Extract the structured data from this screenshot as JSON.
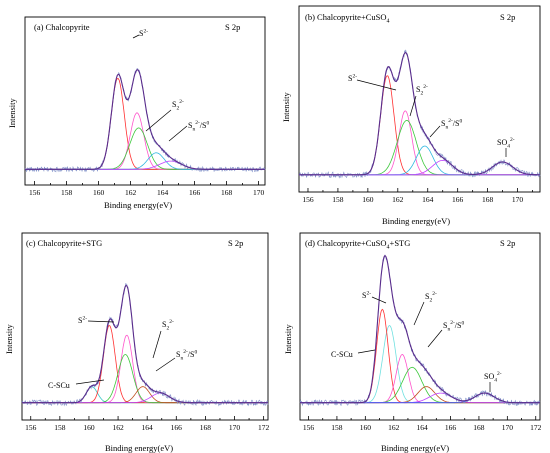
{
  "chart_data": [
    {
      "type": "line",
      "title": "(a) Chalcopyrite",
      "corner_label": "S 2p",
      "xlabel": "Binding energy(eV)",
      "ylabel": "Intensity",
      "xlim": [
        155.4,
        170.4
      ],
      "xticks": [
        156,
        158,
        160,
        162,
        164,
        166,
        168,
        170
      ],
      "ylim": [
        0,
        1.0
      ],
      "baseline": 0.07,
      "components": [
        {
          "name": "S2-",
          "center": 161.2,
          "fwhm": 0.95,
          "height": 0.66,
          "color": "#ff3030"
        },
        {
          "name": "S2 2- a",
          "center": 162.4,
          "fwhm": 1.0,
          "height": 0.41,
          "color": "#ff55cc"
        },
        {
          "name": "S2 2- b",
          "center": 162.5,
          "fwhm": 1.3,
          "height": 0.3,
          "color": "#3cc83c"
        },
        {
          "name": "Sn2-/S0",
          "center": 163.6,
          "fwhm": 1.2,
          "height": 0.12,
          "color": "#30b8e0"
        },
        {
          "name": "Sn2-/S0 b",
          "center": 164.5,
          "fwhm": 1.6,
          "height": 0.06,
          "color": "#c040ff"
        }
      ],
      "annotations": [
        {
          "text": "S2-",
          "x": 162.2,
          "y": 0.91
        },
        {
          "text": "S2 2-",
          "x": 164.0,
          "y": 0.44
        },
        {
          "text": "Sn2-/S0",
          "x": 164.6,
          "y": 0.29
        }
      ]
    },
    {
      "type": "line",
      "title": "(b) Chalcopyrite+CuSO4",
      "corner_label": "S 2p",
      "xlabel": "Binding energy(eV)",
      "ylabel": "Intensity",
      "xlim": [
        155.4,
        171.5
      ],
      "xticks": [
        156,
        158,
        160,
        162,
        164,
        166,
        168,
        170
      ],
      "ylim": [
        0,
        1.0
      ],
      "baseline": 0.07,
      "components": [
        {
          "name": "S2-",
          "center": 161.3,
          "fwhm": 1.05,
          "height": 0.62,
          "color": "#ff3030"
        },
        {
          "name": "S2 2- a",
          "center": 162.5,
          "fwhm": 1.0,
          "height": 0.4,
          "color": "#ff55cc"
        },
        {
          "name": "S2 2- b",
          "center": 162.6,
          "fwhm": 1.5,
          "height": 0.34,
          "color": "#3cc83c"
        },
        {
          "name": "Sn2-/S0",
          "center": 163.8,
          "fwhm": 1.3,
          "height": 0.18,
          "color": "#30b8e0"
        },
        {
          "name": "Sn2-/S0 b",
          "center": 165.0,
          "fwhm": 1.6,
          "height": 0.09,
          "color": "#c040ff"
        },
        {
          "name": "SO4 2-",
          "center": 169.0,
          "fwhm": 1.6,
          "height": 0.08,
          "color": "#a060ff"
        }
      ],
      "annotations": [
        {
          "text": "S2-",
          "x": 159.0,
          "y": 0.72
        },
        {
          "text": "S2 2-",
          "x": 162.8,
          "y": 0.62
        },
        {
          "text": "Sn2-/S0",
          "x": 165.2,
          "y": 0.45
        },
        {
          "text": "SO4 2-",
          "x": 168.9,
          "y": 0.28
        }
      ]
    },
    {
      "type": "line",
      "title": "(c) Chalcopyrite+STG",
      "corner_label": "S 2p",
      "xlabel": "Binding energy(eV)",
      "ylabel": "Intensity",
      "xlim": [
        155.4,
        172.3
      ],
      "xticks": [
        156,
        158,
        160,
        162,
        164,
        166,
        168,
        170,
        172
      ],
      "ylim": [
        0,
        1.0
      ],
      "baseline": 0.07,
      "components": [
        {
          "name": "C-SCu",
          "center": 160.2,
          "fwhm": 0.9,
          "height": 0.1,
          "color": "#3cc8c8"
        },
        {
          "name": "S2-",
          "center": 161.4,
          "fwhm": 0.95,
          "height": 0.48,
          "color": "#ff3030"
        },
        {
          "name": "S2 2- a",
          "center": 162.6,
          "fwhm": 0.95,
          "height": 0.42,
          "color": "#ff55cc"
        },
        {
          "name": "S2 2- b",
          "center": 162.5,
          "fwhm": 1.2,
          "height": 0.3,
          "color": "#3cc83c"
        },
        {
          "name": "Sn2-/S0",
          "center": 163.7,
          "fwhm": 1.1,
          "height": 0.1,
          "color": "#c05020"
        },
        {
          "name": "Sn2-/S0 b",
          "center": 164.9,
          "fwhm": 1.5,
          "height": 0.06,
          "color": "#c040ff"
        }
      ],
      "annotations": [
        {
          "text": "S2-",
          "x": 159.8,
          "y": 0.5
        },
        {
          "text": "S2 2-",
          "x": 164.5,
          "y": 0.47
        },
        {
          "text": "Sn2-/S0",
          "x": 165.4,
          "y": 0.27
        },
        {
          "text": "C-SCu",
          "x": 157.9,
          "y": 0.22
        }
      ]
    },
    {
      "type": "line",
      "title": "(d) Chalcopyrite+CuSO4+STG",
      "corner_label": "S 2p",
      "xlabel": "Binding energy(eV)",
      "ylabel": "Intensity",
      "xlim": [
        155.4,
        172.3
      ],
      "xticks": [
        156,
        158,
        160,
        162,
        164,
        166,
        168,
        170,
        172
      ],
      "ylim": [
        0,
        1.0
      ],
      "baseline": 0.07,
      "components": [
        {
          "name": "C-SCu",
          "center": 161.7,
          "fwhm": 1.1,
          "height": 0.48,
          "color": "#70e0e0"
        },
        {
          "name": "S2-",
          "center": 161.2,
          "fwhm": 0.95,
          "height": 0.58,
          "color": "#ff3030"
        },
        {
          "name": "S2 2- a",
          "center": 162.6,
          "fwhm": 1.0,
          "height": 0.3,
          "color": "#ff55cc"
        },
        {
          "name": "S2 2- b",
          "center": 163.3,
          "fwhm": 1.6,
          "height": 0.22,
          "color": "#3cc83c"
        },
        {
          "name": "Sn2-/S0",
          "center": 164.3,
          "fwhm": 1.4,
          "height": 0.1,
          "color": "#c05020"
        },
        {
          "name": "Sn2-/S0 b",
          "center": 165.3,
          "fwhm": 1.8,
          "height": 0.06,
          "color": "#c040ff"
        },
        {
          "name": "SO4 2-",
          "center": 168.4,
          "fwhm": 1.6,
          "height": 0.06,
          "color": "#4060ff"
        }
      ],
      "annotations": [
        {
          "text": "S2-",
          "x": 160.0,
          "y": 0.66
        },
        {
          "text": "S2 2-",
          "x": 164.2,
          "y": 0.66
        },
        {
          "text": "Sn2-/S0",
          "x": 165.6,
          "y": 0.52
        },
        {
          "text": "C-SCu",
          "x": 158.6,
          "y": 0.41
        },
        {
          "text": "SO4 2-",
          "x": 168.4,
          "y": 0.29
        }
      ]
    }
  ],
  "labels": {
    "a_title": "(a) Chalcopyrite",
    "b_title_main": "(b) Chalcopyrite+CuSO",
    "b_title_sub": "4",
    "c_title": "(c) Chalcopyrite+STG",
    "d_title_main": "(d) Chalcopyrite+CuSO",
    "d_title_sub": "4",
    "d_title_tail": "+STG",
    "corner": "S 2p",
    "xlabel": "Binding energy(eV)",
    "ylabel": "Intensity",
    "s2_base": "S",
    "s2_sup": "2-",
    "s22_base": "S",
    "s22_sub": "2",
    "s22_sup": "2-",
    "sn_base": "S",
    "sn_sub": "n",
    "sn_sup": "2-",
    "sn_tail": "/S",
    "sn_tail_sup": "0",
    "so4_base": "SO",
    "so4_sub": "4",
    "so4_sup": "2-",
    "cscu": "C-SCu"
  }
}
